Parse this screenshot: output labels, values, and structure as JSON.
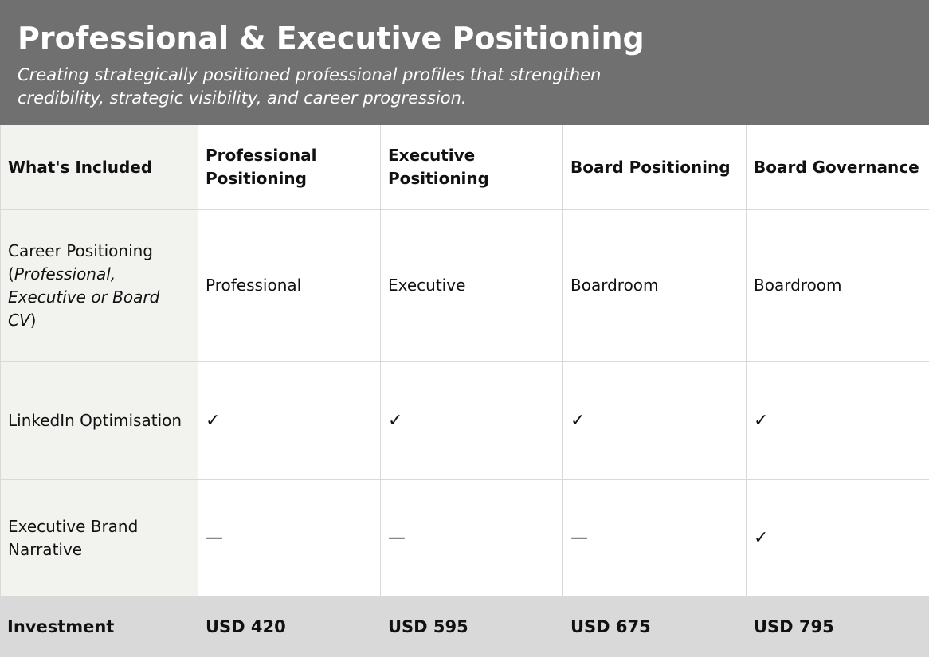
{
  "header": {
    "title": "Professional & Executive Positioning",
    "subtitle": "Creating strategically positioned professional profiles that strengthen credibility, strategic visibility, and career progression."
  },
  "table": {
    "columns": [
      "What's Included",
      "Professional Positioning",
      "Executive Positioning",
      "Board Positioning",
      "Board Governance"
    ],
    "rows": [
      {
        "label_prefix": "Career Positioning (",
        "label_italic": "Professional, Executive or Board CV",
        "label_suffix": ")",
        "cells": [
          "Professional",
          "Executive",
          "Boardroom",
          "Boardroom"
        ]
      },
      {
        "label": "LinkedIn Optimisation",
        "cells": [
          "✓",
          "✓",
          "✓",
          "✓"
        ]
      },
      {
        "label": "Executive Brand Narrative",
        "cells": [
          "—",
          "—",
          "—",
          "✓"
        ]
      }
    ],
    "investment": {
      "label": "Investment",
      "prices": [
        "USD 420",
        "USD 595",
        "USD 675",
        "USD 795"
      ]
    }
  }
}
